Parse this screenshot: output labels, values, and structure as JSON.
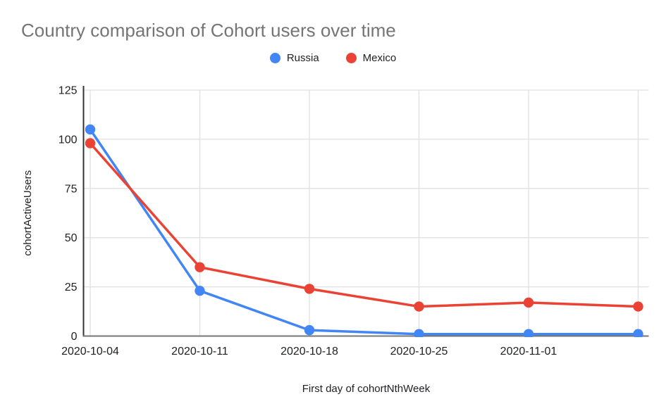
{
  "title": "Country comparison of Cohort users over time",
  "legend": [
    {
      "label": "Russia",
      "color": "#4285F4"
    },
    {
      "label": "Mexico",
      "color": "#EA4335"
    }
  ],
  "chart_data": {
    "type": "line",
    "title": "Country comparison of Cohort users over time",
    "xlabel": "First day of cohortNthWeek",
    "ylabel": "cohortActiveUsers",
    "categories": [
      "2020-10-04",
      "2020-10-11",
      "2020-10-18",
      "2020-10-25",
      "2020-11-01",
      ""
    ],
    "series": [
      {
        "name": "Russia",
        "color": "#4285F4",
        "values": [
          105,
          23,
          3,
          1,
          1,
          1
        ]
      },
      {
        "name": "Mexico",
        "color": "#EA4335",
        "values": [
          98,
          35,
          24,
          15,
          17,
          15
        ]
      }
    ],
    "y_ticks": [
      0,
      25,
      50,
      75,
      100,
      125
    ],
    "ylim": [
      0,
      125
    ],
    "grid": true,
    "legend_position": "top",
    "marker": "circle"
  },
  "colors": {
    "background": "#FFFFFF",
    "title_text": "#757575",
    "axis_text": "#202124",
    "grid_line": "#E0E0E0",
    "y_axis_line": "#333333",
    "x_axis_line": "#757575"
  }
}
